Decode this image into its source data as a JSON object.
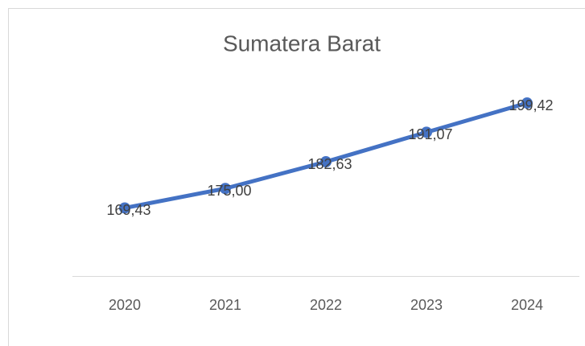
{
  "chart_data": {
    "type": "line",
    "title": "Sumatera Barat",
    "categories": [
      "2020",
      "2021",
      "2022",
      "2023",
      "2024"
    ],
    "series": [
      {
        "color": "#4472c4",
        "values": [
          169.43,
          175.0,
          182.63,
          191.07,
          199.42
        ],
        "value_labels": [
          "169,43",
          "175,00",
          "182,63",
          "191,07",
          "199,42"
        ]
      }
    ],
    "ylim": [
      150,
      210
    ]
  }
}
